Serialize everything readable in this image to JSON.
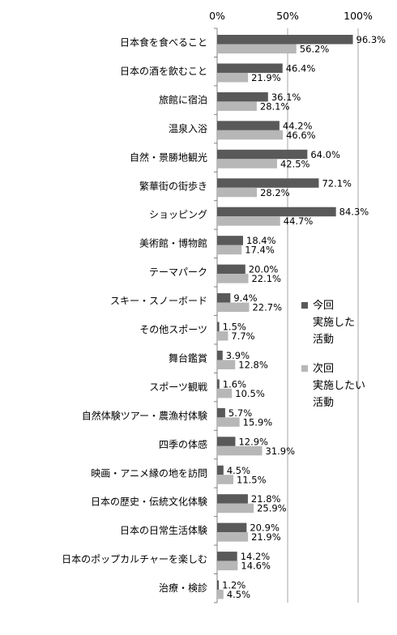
{
  "chart_data": {
    "type": "bar",
    "orientation": "horizontal",
    "xlim": [
      0,
      100
    ],
    "x_ticks": [
      "0%",
      "50%",
      "100%"
    ],
    "x_tick_values": [
      0,
      50,
      100
    ],
    "grid": true,
    "legend_position": "right",
    "value_unit": "%",
    "categories": [
      "日本食を食べること",
      "日本の酒を飲むこと",
      "旅館に宿泊",
      "温泉入浴",
      "自然・景勝地観光",
      "繁華街の街歩き",
      "ショッピング",
      "美術館・博物館",
      "テーマパーク",
      "スキー・スノーボード",
      "その他スポーツ",
      "舞台鑑賞",
      "スポーツ観戦",
      "自然体験ツアー・農漁村体験",
      "四季の体感",
      "映画・アニメ縁の地を訪問",
      "日本の歴史・伝統文化体験",
      "日本の日常生活体験",
      "日本のポップカルチャーを楽しむ",
      "治療・検診"
    ],
    "series": [
      {
        "name": "今回実施した活動",
        "legend_lines": [
          "今回",
          "実施した",
          "活動"
        ],
        "color": "#595959",
        "values": [
          96.3,
          46.4,
          36.1,
          44.2,
          64.0,
          72.1,
          84.3,
          18.4,
          20.0,
          9.4,
          1.5,
          3.9,
          1.6,
          5.7,
          12.9,
          4.5,
          21.8,
          20.9,
          14.2,
          1.2
        ],
        "labels": [
          "96.3%",
          "46.4%",
          "36.1%",
          "44.2%",
          "64.0%",
          "72.1%",
          "84.3%",
          "18.4%",
          "20.0%",
          "9.4%",
          "1.5%",
          "3.9%",
          "1.6%",
          "5.7%",
          "12.9%",
          "4.5%",
          "21.8%",
          "20.9%",
          "14.2%",
          "1.2%"
        ]
      },
      {
        "name": "次回実施したい活動",
        "legend_lines": [
          "次回",
          "実施したい",
          "活動"
        ],
        "color": "#b7b7b7",
        "values": [
          56.2,
          21.9,
          28.1,
          46.6,
          42.5,
          28.2,
          44.7,
          17.4,
          22.1,
          22.7,
          7.7,
          12.8,
          10.5,
          15.9,
          31.9,
          11.5,
          25.9,
          21.9,
          14.6,
          4.5
        ],
        "labels": [
          "56.2%",
          "21.9%",
          "28.1%",
          "46.6%",
          "42.5%",
          "28.2%",
          "44.7%",
          "17.4%",
          "22.1%",
          "22.7%",
          "7.7%",
          "12.8%",
          "10.5%",
          "15.9%",
          "31.9%",
          "11.5%",
          "25.9%",
          "21.9%",
          "14.6%",
          "4.5%"
        ]
      }
    ]
  }
}
